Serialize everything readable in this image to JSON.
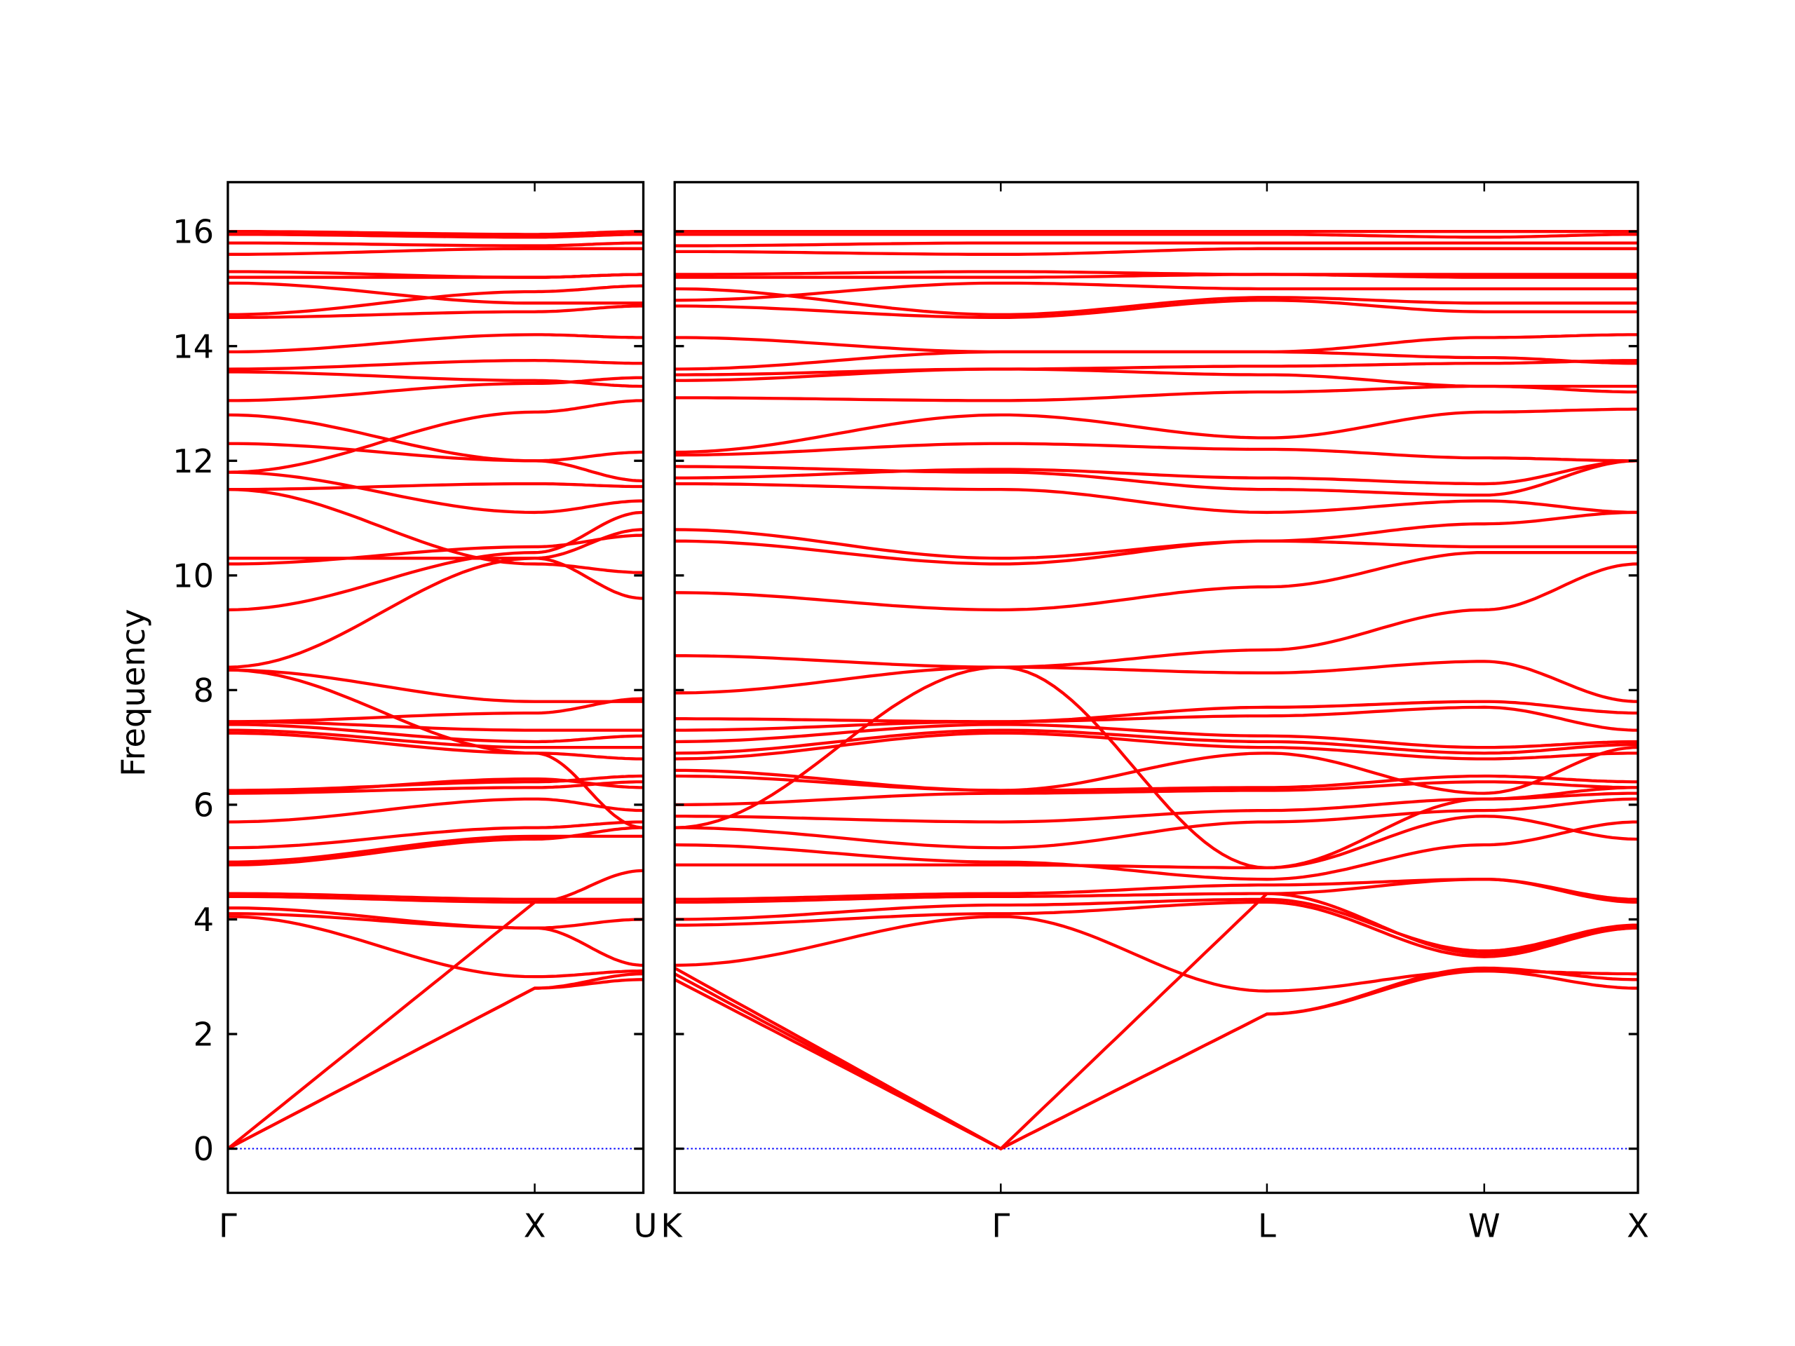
{
  "chart_data": {
    "type": "line",
    "title": "",
    "ylabel": "Frequency",
    "xlabel": "",
    "ylim": [
      -0.77,
      16.86
    ],
    "yticks": [
      0,
      2,
      4,
      6,
      8,
      10,
      12,
      14,
      16
    ],
    "grid": false,
    "legend": "none",
    "colors": {
      "bands": "#ff0000",
      "zero_line": "#0000ff",
      "axes": "#000000"
    },
    "panels": [
      {
        "xlim": [
          0,
          1.354
        ],
        "xticks": [
          0,
          1.0,
          1.354
        ],
        "xtick_labels": [
          "Γ",
          "X",
          "U"
        ],
        "bands": [
          [
            0,
            2.8,
            2.95
          ],
          [
            0,
            2.8,
            3.05
          ],
          [
            0,
            4.3,
            4.85
          ],
          [
            4.05,
            3.0,
            3.1
          ],
          [
            4.1,
            3.85,
            3.2
          ],
          [
            4.2,
            3.85,
            4.0
          ],
          [
            4.4,
            4.3,
            4.3
          ],
          [
            4.45,
            4.35,
            4.35
          ],
          [
            4.95,
            5.4,
            5.6
          ],
          [
            5.0,
            5.45,
            5.45
          ],
          [
            5.25,
            5.6,
            5.7
          ],
          [
            5.7,
            6.1,
            5.9
          ],
          [
            6.2,
            6.3,
            6.4
          ],
          [
            6.25,
            6.4,
            6.5
          ],
          [
            6.2,
            6.45,
            6.3
          ],
          [
            7.25,
            6.9,
            6.8
          ],
          [
            7.3,
            7.0,
            7.0
          ],
          [
            7.4,
            7.1,
            7.2
          ],
          [
            7.45,
            7.3,
            7.3
          ],
          [
            7.45,
            7.6,
            7.85
          ],
          [
            8.35,
            7.8,
            7.8
          ],
          [
            8.35,
            6.9,
            5.6
          ],
          [
            8.4,
            10.3,
            10.8
          ],
          [
            9.4,
            10.4,
            11.1
          ],
          [
            10.2,
            10.5,
            10.7
          ],
          [
            10.3,
            10.3,
            9.6
          ],
          [
            11.5,
            10.2,
            10.05
          ],
          [
            11.8,
            11.1,
            11.3
          ],
          [
            11.5,
            11.6,
            11.55
          ],
          [
            12.3,
            12.0,
            12.15
          ],
          [
            12.8,
            12.0,
            11.65
          ],
          [
            11.8,
            12.85,
            13.05
          ],
          [
            13.05,
            13.35,
            13.45
          ],
          [
            13.55,
            13.4,
            13.3
          ],
          [
            13.6,
            13.75,
            13.7
          ],
          [
            13.9,
            14.2,
            14.15
          ],
          [
            14.5,
            14.6,
            14.7
          ],
          [
            14.55,
            14.95,
            15.05
          ],
          [
            15.1,
            14.75,
            14.75
          ],
          [
            15.2,
            15.2,
            15.25
          ],
          [
            15.3,
            15.2,
            15.25
          ],
          [
            15.6,
            15.7,
            15.7
          ],
          [
            15.8,
            15.75,
            15.8
          ],
          [
            15.95,
            15.9,
            15.95
          ],
          [
            16.0,
            15.95,
            16.0
          ]
        ]
      },
      {
        "xlim": [
          1.354,
          4.488
        ],
        "xticks": [
          1.354,
          2.415,
          3.281,
          3.988,
          4.488
        ],
        "xtick_labels": [
          "K",
          "Γ",
          "L",
          "W",
          "X"
        ],
        "bands": [
          [
            2.95,
            0,
            2.35,
            3.1,
            2.8
          ],
          [
            3.05,
            0,
            2.35,
            3.15,
            2.95
          ],
          [
            3.15,
            0,
            4.45,
            3.4,
            3.85
          ],
          [
            3.2,
            4.05,
            2.75,
            3.1,
            3.05
          ],
          [
            3.9,
            4.1,
            4.3,
            3.35,
            3.85
          ],
          [
            4.0,
            4.25,
            4.35,
            3.45,
            3.9
          ],
          [
            4.3,
            4.4,
            4.45,
            4.7,
            4.3
          ],
          [
            4.35,
            4.45,
            4.6,
            4.7,
            4.35
          ],
          [
            4.95,
            4.95,
            4.9,
            5.8,
            5.4
          ],
          [
            5.3,
            5.0,
            4.7,
            5.3,
            5.7
          ],
          [
            5.6,
            5.25,
            5.7,
            5.9,
            6.1
          ],
          [
            5.8,
            5.7,
            5.9,
            6.1,
            6.2
          ],
          [
            6.0,
            6.2,
            6.25,
            6.4,
            6.3
          ],
          [
            6.5,
            6.25,
            6.3,
            6.5,
            6.4
          ],
          [
            6.6,
            6.25,
            6.9,
            6.2,
            7.0
          ],
          [
            6.8,
            7.25,
            7.0,
            6.8,
            6.9
          ],
          [
            6.9,
            7.3,
            7.1,
            6.9,
            7.05
          ],
          [
            7.1,
            7.4,
            7.2,
            7.0,
            7.1
          ],
          [
            7.3,
            7.45,
            7.55,
            7.7,
            7.3
          ],
          [
            7.5,
            7.45,
            7.7,
            7.8,
            7.6
          ],
          [
            7.95,
            8.4,
            8.3,
            8.5,
            7.8
          ],
          [
            5.6,
            8.4,
            4.9,
            6.1,
            6.3
          ],
          [
            8.6,
            8.4,
            8.7,
            9.4,
            10.2
          ],
          [
            9.7,
            9.4,
            9.8,
            10.4,
            10.4
          ],
          [
            10.6,
            10.2,
            10.6,
            10.5,
            10.5
          ],
          [
            10.8,
            10.3,
            10.6,
            10.9,
            11.1
          ],
          [
            11.6,
            11.5,
            11.1,
            11.3,
            11.1
          ],
          [
            11.9,
            11.8,
            11.5,
            11.4,
            12.0
          ],
          [
            11.7,
            11.85,
            11.7,
            11.6,
            12.0
          ],
          [
            12.1,
            12.3,
            12.2,
            12.05,
            12.0
          ],
          [
            12.15,
            12.8,
            12.4,
            12.85,
            12.9
          ],
          [
            13.1,
            13.05,
            13.2,
            13.3,
            13.3
          ],
          [
            13.4,
            13.6,
            13.65,
            13.7,
            13.75
          ],
          [
            13.5,
            13.6,
            13.5,
            13.3,
            13.2
          ],
          [
            13.6,
            13.9,
            13.9,
            14.15,
            14.2
          ],
          [
            14.15,
            13.9,
            13.9,
            13.8,
            13.7
          ],
          [
            14.7,
            14.5,
            14.8,
            14.6,
            14.6
          ],
          [
            15.0,
            14.55,
            14.85,
            14.75,
            14.75
          ],
          [
            14.8,
            15.1,
            15.0,
            15.0,
            15.0
          ],
          [
            15.2,
            15.2,
            15.25,
            15.2,
            15.2
          ],
          [
            15.25,
            15.3,
            15.25,
            15.25,
            15.25
          ],
          [
            15.65,
            15.6,
            15.7,
            15.7,
            15.7
          ],
          [
            15.75,
            15.8,
            15.8,
            15.8,
            15.8
          ],
          [
            15.95,
            15.95,
            15.95,
            15.9,
            15.95
          ],
          [
            16.0,
            16.0,
            16.0,
            16.0,
            16.0
          ]
        ]
      }
    ]
  }
}
